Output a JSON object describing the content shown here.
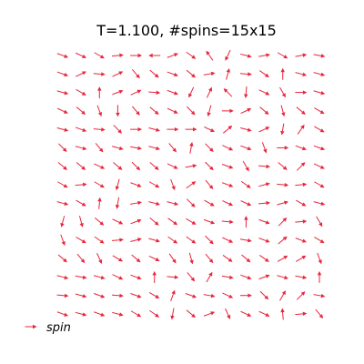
{
  "chart_data": {
    "type": "quiver",
    "title": "T=1.100, #spins=15x15",
    "grid_size": [
      15,
      15
    ],
    "series": [
      {
        "name": "spin",
        "color": "#e8253c"
      }
    ],
    "legend_position": "lower-left",
    "axes_visible": false,
    "angles_deg": [
      [
        -20,
        -25,
        -30,
        5,
        0,
        180,
        20,
        -35,
        125,
        -115,
        -15,
        10,
        -30,
        10,
        -10
      ],
      [
        -20,
        25,
        -5,
        25,
        -50,
        -40,
        -20,
        -40,
        10,
        75,
        -5,
        -35,
        90,
        -15,
        -15
      ],
      [
        -15,
        -30,
        90,
        20,
        25,
        -5,
        -20,
        -115,
        65,
        135,
        -95,
        -25,
        -60,
        0,
        -15
      ],
      [
        -25,
        -40,
        -70,
        -90,
        -50,
        -40,
        -25,
        -45,
        -105,
        0,
        25,
        -40,
        -75,
        -40,
        -30
      ],
      [
        -15,
        -20,
        -5,
        -45,
        0,
        -15,
        0,
        0,
        -25,
        40,
        -15,
        25,
        -100,
        55,
        -30
      ],
      [
        -45,
        -15,
        -50,
        -15,
        -10,
        -15,
        -50,
        80,
        -45,
        -25,
        -20,
        -70,
        0,
        -20,
        -20
      ],
      [
        -40,
        -40,
        -25,
        -40,
        -45,
        -40,
        -25,
        10,
        -45,
        -20,
        -60,
        -5,
        -40,
        45,
        -25
      ],
      [
        -30,
        5,
        -30,
        -105,
        -20,
        -30,
        -70,
        35,
        -50,
        -20,
        -35,
        15,
        -5,
        5,
        -30
      ],
      [
        -15,
        -30,
        85,
        -100,
        10,
        -15,
        -15,
        -45,
        -30,
        -25,
        -25,
        5,
        15,
        -30,
        -15
      ],
      [
        -105,
        -75,
        -40,
        -25,
        20,
        -40,
        -35,
        -30,
        -20,
        -5,
        90,
        -20,
        45,
        5,
        -60
      ],
      [
        -70,
        -30,
        -35,
        5,
        15,
        -15,
        -35,
        -35,
        -45,
        -25,
        -10,
        -20,
        40,
        -20,
        -30
      ],
      [
        -40,
        -50,
        -65,
        -30,
        -40,
        -25,
        -55,
        -75,
        -50,
        -35,
        -40,
        -35,
        30,
        30,
        -70
      ],
      [
        -15,
        -10,
        -15,
        -25,
        -20,
        90,
        -5,
        -50,
        60,
        -10,
        -20,
        20,
        -15,
        -10,
        90
      ],
      [
        -5,
        -15,
        -20,
        -5,
        -20,
        -30,
        70,
        -20,
        -10,
        -25,
        0,
        -45,
        60,
        45,
        -10
      ],
      [
        -20,
        -15,
        -20,
        -15,
        -30,
        -35,
        -100,
        -40,
        20,
        -65,
        -25,
        -25,
        95,
        5,
        -50
      ]
    ]
  },
  "title": "T=1.100, #spins=15x15",
  "legend": {
    "label": "spin",
    "color": "#e8253c"
  }
}
